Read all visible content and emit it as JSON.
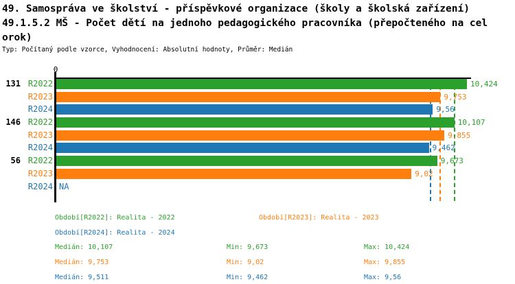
{
  "title": {
    "line1": "49. Samospráva ve školství - příspěvkové organizace (školy a školská zařízení)",
    "line2": "49.1.5.2 MŠ - Počet dětí na jednoho pedagogického pracovníka (přepočteného na cel",
    "line3": "orok)",
    "subtitle": "Typ: Počítaný podle vzorce, Vyhodnocení: Absolutní hodnoty, Průměr: Medián"
  },
  "colors": {
    "green": "#2ca02c",
    "orange": "#ff7f0e",
    "blue": "#1f77b4",
    "axis": "#000000",
    "background": "#ffffff"
  },
  "chart_data": {
    "type": "bar",
    "orientation": "horizontal",
    "x_axis": {
      "ticks": [
        "0"
      ],
      "xlim": [
        0,
        10.53
      ],
      "grid": false
    },
    "groups": [
      {
        "label": "131",
        "bars": [
          {
            "series": "R2022",
            "value": 10.424,
            "display": "10,424",
            "color": "#2ca02c"
          },
          {
            "series": "R2023",
            "value": 9.753,
            "display": "9,753",
            "color": "#ff7f0e"
          },
          {
            "series": "R2024",
            "value": 9.56,
            "display": "9,56",
            "color": "#1f77b4"
          }
        ]
      },
      {
        "label": "146",
        "bars": [
          {
            "series": "R2022",
            "value": 10.107,
            "display": "10,107",
            "color": "#2ca02c"
          },
          {
            "series": "R2023",
            "value": 9.855,
            "display": "9,855",
            "color": "#ff7f0e"
          },
          {
            "series": "R2024",
            "value": 9.462,
            "display": "9,462",
            "color": "#1f77b4"
          }
        ]
      },
      {
        "label": "56",
        "bars": [
          {
            "series": "R2022",
            "value": 9.673,
            "display": "9,673",
            "color": "#2ca02c"
          },
          {
            "series": "R2023",
            "value": 9.02,
            "display": "9,02",
            "color": "#ff7f0e"
          },
          {
            "series": "R2024",
            "value": null,
            "display": "NA",
            "color": "#1f77b4"
          }
        ]
      }
    ],
    "medians": [
      {
        "series": "R2022",
        "value": 10.107,
        "color": "#2ca02c"
      },
      {
        "series": "R2023",
        "value": 9.753,
        "color": "#ff7f0e"
      },
      {
        "series": "R2024",
        "value": 9.511,
        "color": "#1f77b4"
      }
    ]
  },
  "legend": [
    {
      "label": "Období[R2022]: Realita - 2022",
      "color": "#2ca02c"
    },
    {
      "label": "Období[R2023]: Realita - 2023",
      "color": "#ff7f0e"
    },
    {
      "label": "Období[R2024]: Realita - 2024",
      "color": "#1f77b4"
    }
  ],
  "stats": [
    {
      "median": "Medián: 10,107",
      "min": "Min: 9,673",
      "max": "Max: 10,424",
      "color": "#2ca02c"
    },
    {
      "median": "Medián: 9,753",
      "min": "Min: 9,02",
      "max": "Max: 9,855",
      "color": "#ff7f0e"
    },
    {
      "median": "Medián: 9,511",
      "min": "Min: 9,462",
      "max": "Max: 9,56",
      "color": "#1f77b4"
    }
  ]
}
